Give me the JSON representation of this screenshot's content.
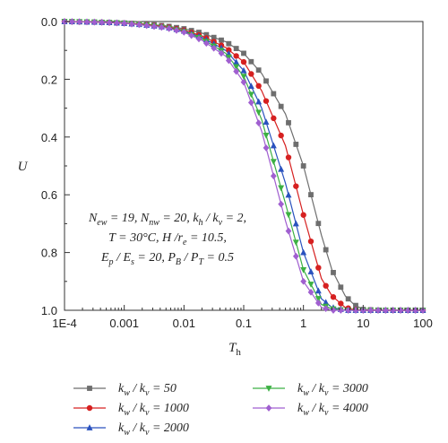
{
  "chart_data": {
    "type": "line",
    "xlabel": "T",
    "xlabel_sub": "h",
    "ylabel": "U",
    "xscale": "log",
    "xlim": [
      0.0001,
      100
    ],
    "ylim": [
      0.0,
      1.0
    ],
    "y_inverted": true,
    "grid": false,
    "x_ticks": [
      0.0001,
      0.001,
      0.01,
      0.1,
      1,
      10,
      100
    ],
    "x_tick_labels": [
      "1E-4",
      "0.001",
      "0.01",
      "0.1",
      "1",
      "10",
      "100"
    ],
    "y_ticks": [
      0.0,
      0.2,
      0.4,
      0.6,
      0.8,
      1.0
    ],
    "y_tick_labels": [
      "0.0",
      "0.2",
      "0.4",
      "0.6",
      "0.8",
      "1.0"
    ],
    "legend_position": "bottom",
    "annotation": {
      "lines": [
        [
          {
            "t": "N"
          },
          {
            "t": "ew",
            "sub": true
          },
          {
            "t": " = 19, "
          },
          {
            "t": "N"
          },
          {
            "t": "nw",
            "sub": true
          },
          {
            "t": " = 20, "
          },
          {
            "t": "k"
          },
          {
            "t": "h",
            "sub": true
          },
          {
            "t": " / "
          },
          {
            "t": "k"
          },
          {
            "t": "v",
            "sub": true
          },
          {
            "t": " = 2,"
          }
        ],
        [
          {
            "t": "T"
          },
          {
            "t": " = 30°C, "
          },
          {
            "t": "H"
          },
          {
            "t": " /"
          },
          {
            "t": "r"
          },
          {
            "t": "e",
            "sub": true
          },
          {
            "t": " = 10.5,"
          }
        ],
        [
          {
            "t": "E"
          },
          {
            "t": "p",
            "sub": true
          },
          {
            "t": " / "
          },
          {
            "t": "E"
          },
          {
            "t": "s",
            "sub": true
          },
          {
            "t": " = 20, "
          },
          {
            "t": "P"
          },
          {
            "t": "B",
            "sub": true
          },
          {
            "t": " / "
          },
          {
            "t": "P"
          },
          {
            "t": "T",
            "sub": true
          },
          {
            "t": " = 0.5"
          }
        ]
      ]
    },
    "series": [
      {
        "name_parts": [
          {
            "t": "k"
          },
          {
            "t": "w",
            "sub": true
          },
          {
            "t": " / "
          },
          {
            "t": "k"
          },
          {
            "t": "v",
            "sub": true
          },
          {
            "t": " = 50"
          }
        ],
        "color": "#6e6e6e",
        "marker": "square",
        "x": [
          0.0001,
          0.0002,
          0.0005,
          0.001,
          0.002,
          0.005,
          0.01,
          0.02,
          0.05,
          0.1,
          0.2,
          0.5,
          1,
          2,
          3,
          5,
          7,
          10,
          20,
          50,
          100
        ],
        "y": [
          0.0,
          0.001,
          0.003,
          0.005,
          0.008,
          0.015,
          0.025,
          0.04,
          0.07,
          0.11,
          0.18,
          0.32,
          0.5,
          0.74,
          0.86,
          0.95,
          0.98,
          0.997,
          1.0,
          1.0,
          1.0
        ]
      },
      {
        "name_parts": [
          {
            "t": "k"
          },
          {
            "t": "w",
            "sub": true
          },
          {
            "t": " / "
          },
          {
            "t": "k"
          },
          {
            "t": "v",
            "sub": true
          },
          {
            "t": " = 1000"
          }
        ],
        "color": "#d62020",
        "marker": "circle",
        "x": [
          0.0001,
          0.0002,
          0.0005,
          0.001,
          0.002,
          0.005,
          0.01,
          0.02,
          0.05,
          0.1,
          0.2,
          0.5,
          1,
          2,
          3,
          5,
          7,
          10,
          20,
          50,
          100
        ],
        "y": [
          0.0,
          0.001,
          0.003,
          0.006,
          0.01,
          0.018,
          0.03,
          0.05,
          0.09,
          0.14,
          0.24,
          0.43,
          0.67,
          0.89,
          0.95,
          0.99,
          0.998,
          1.0,
          1.0,
          1.0,
          1.0
        ]
      },
      {
        "name_parts": [
          {
            "t": "k"
          },
          {
            "t": "w",
            "sub": true
          },
          {
            "t": " / "
          },
          {
            "t": "k"
          },
          {
            "t": "v",
            "sub": true
          },
          {
            "t": " = 2000"
          }
        ],
        "color": "#2a52be",
        "marker": "triangle",
        "x": [
          0.0001,
          0.0002,
          0.0005,
          0.001,
          0.002,
          0.005,
          0.01,
          0.02,
          0.05,
          0.1,
          0.2,
          0.5,
          1,
          2,
          3,
          5,
          7,
          10,
          20,
          50,
          100
        ],
        "y": [
          0.0,
          0.001,
          0.003,
          0.006,
          0.011,
          0.02,
          0.033,
          0.055,
          0.1,
          0.17,
          0.3,
          0.56,
          0.8,
          0.96,
          0.99,
          1.0,
          1.0,
          1.0,
          1.0,
          1.0,
          1.0
        ]
      },
      {
        "name_parts": [
          {
            "t": "k"
          },
          {
            "t": "w",
            "sub": true
          },
          {
            "t": " / "
          },
          {
            "t": "k"
          },
          {
            "t": "v",
            "sub": true
          },
          {
            "t": " = 3000"
          }
        ],
        "color": "#3cb043",
        "marker": "triangle-down",
        "x": [
          0.0001,
          0.0002,
          0.0005,
          0.001,
          0.002,
          0.005,
          0.01,
          0.02,
          0.05,
          0.1,
          0.2,
          0.5,
          1,
          2,
          3,
          5,
          7,
          10,
          20,
          50,
          100
        ],
        "y": [
          0.0,
          0.001,
          0.003,
          0.006,
          0.011,
          0.021,
          0.035,
          0.06,
          0.11,
          0.19,
          0.34,
          0.63,
          0.86,
          0.98,
          0.995,
          1.0,
          1.0,
          1.0,
          1.0,
          1.0,
          1.0
        ]
      },
      {
        "name_parts": [
          {
            "t": "k"
          },
          {
            "t": "w",
            "sub": true
          },
          {
            "t": " / "
          },
          {
            "t": "k"
          },
          {
            "t": "v",
            "sub": true
          },
          {
            "t": " = 4000"
          }
        ],
        "color": "#a05fd0",
        "marker": "diamond",
        "x": [
          0.0001,
          0.0002,
          0.0005,
          0.001,
          0.002,
          0.005,
          0.01,
          0.02,
          0.05,
          0.1,
          0.2,
          0.5,
          1,
          2,
          3,
          5,
          7,
          10,
          20,
          50,
          100
        ],
        "y": [
          0.0,
          0.001,
          0.003,
          0.006,
          0.012,
          0.022,
          0.037,
          0.065,
          0.12,
          0.21,
          0.38,
          0.69,
          0.9,
          0.99,
          1.0,
          1.0,
          1.0,
          1.0,
          1.0,
          1.0,
          1.0
        ]
      }
    ]
  }
}
